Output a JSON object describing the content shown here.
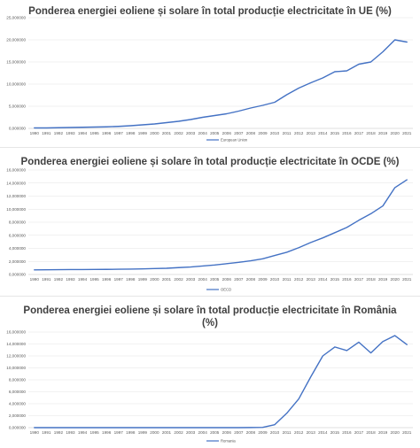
{
  "chart_data": [
    {
      "type": "line",
      "title": "Ponderea energiei eoliene și solare în total producție electricitate în UE (%)",
      "xlabel": "",
      "ylabel": "",
      "x": [
        "1990",
        "1991",
        "1992",
        "1993",
        "1994",
        "1995",
        "1996",
        "1997",
        "1998",
        "1999",
        "2000",
        "2001",
        "2002",
        "2003",
        "2004",
        "2005",
        "2006",
        "2007",
        "2008",
        "2009",
        "2010",
        "2011",
        "2012",
        "2013",
        "2014",
        "2015",
        "2016",
        "2017",
        "2018",
        "2019",
        "2020",
        "2021"
      ],
      "y_ticks": [
        "0,000000",
        "5,000000",
        "10,000000",
        "15,000000",
        "20,000000",
        "25,000000"
      ],
      "ylim": [
        0,
        25
      ],
      "grid": true,
      "legend_position": "bottom",
      "series": [
        {
          "name": "European Union",
          "color": "#4472c4",
          "values": [
            0.1,
            0.1,
            0.15,
            0.2,
            0.25,
            0.3,
            0.35,
            0.45,
            0.6,
            0.8,
            1.0,
            1.3,
            1.6,
            2.0,
            2.5,
            2.9,
            3.3,
            3.9,
            4.6,
            5.2,
            5.9,
            7.6,
            9.1,
            10.3,
            11.4,
            12.8,
            13.0,
            14.5,
            15.0,
            17.3,
            20.0,
            19.5
          ]
        }
      ]
    },
    {
      "type": "line",
      "title": "Ponderea energiei eoliene și solare în total producție electricitate în OCDE (%)",
      "xlabel": "",
      "ylabel": "",
      "x": [
        "1990",
        "1991",
        "1992",
        "1993",
        "1994",
        "1995",
        "1996",
        "1997",
        "1998",
        "1999",
        "2000",
        "2001",
        "2002",
        "2003",
        "2004",
        "2005",
        "2006",
        "2007",
        "2008",
        "2009",
        "2010",
        "2011",
        "2012",
        "2013",
        "2014",
        "2015",
        "2016",
        "2017",
        "2018",
        "2019",
        "2020",
        "2021"
      ],
      "y_ticks": [
        "0,000000",
        "2,000000",
        "4,000000",
        "6,000000",
        "8,000000",
        "10,000000",
        "12,000000",
        "14,000000",
        "16,000000"
      ],
      "ylim": [
        0,
        16
      ],
      "grid": true,
      "legend_position": "bottom",
      "series": [
        {
          "name": "OECD",
          "color": "#4472c4",
          "values": [
            0.7,
            0.72,
            0.74,
            0.76,
            0.76,
            0.77,
            0.78,
            0.8,
            0.82,
            0.86,
            0.9,
            0.95,
            1.05,
            1.15,
            1.3,
            1.45,
            1.65,
            1.85,
            2.1,
            2.4,
            2.9,
            3.4,
            4.1,
            4.9,
            5.6,
            6.4,
            7.2,
            8.3,
            9.3,
            10.5,
            13.3,
            14.5
          ]
        }
      ]
    },
    {
      "type": "line",
      "title": "Ponderea energiei eoliene și solare în total producție electricitate în România (%)",
      "xlabel": "",
      "ylabel": "",
      "x": [
        "1990",
        "1991",
        "1992",
        "1993",
        "1994",
        "1995",
        "1996",
        "1997",
        "1998",
        "1999",
        "2000",
        "2001",
        "2002",
        "2003",
        "2004",
        "2005",
        "2006",
        "2007",
        "2008",
        "2009",
        "2010",
        "2011",
        "2012",
        "2013",
        "2014",
        "2015",
        "2016",
        "2017",
        "2018",
        "2019",
        "2020",
        "2021"
      ],
      "y_ticks": [
        "0,000000",
        "2,000000",
        "4,000000",
        "6,000000",
        "8,000000",
        "10,000000",
        "12,000000",
        "14,000000",
        "16,000000"
      ],
      "ylim": [
        0,
        16
      ],
      "grid": true,
      "legend_position": "bottom",
      "series": [
        {
          "name": "Romania",
          "color": "#4472c4",
          "values": [
            0,
            0,
            0,
            0,
            0,
            0,
            0,
            0,
            0,
            0,
            0,
            0,
            0,
            0,
            0,
            0,
            0,
            0,
            0.02,
            0.05,
            0.5,
            2.4,
            4.8,
            8.5,
            12.0,
            13.5,
            12.9,
            14.3,
            12.5,
            14.4,
            15.4,
            13.9
          ]
        }
      ]
    }
  ],
  "layout_titles": {
    "ro_line1": "Ponderea energiei eoliene și solare în total producție electricitate în România",
    "ro_line2": "(%)"
  }
}
